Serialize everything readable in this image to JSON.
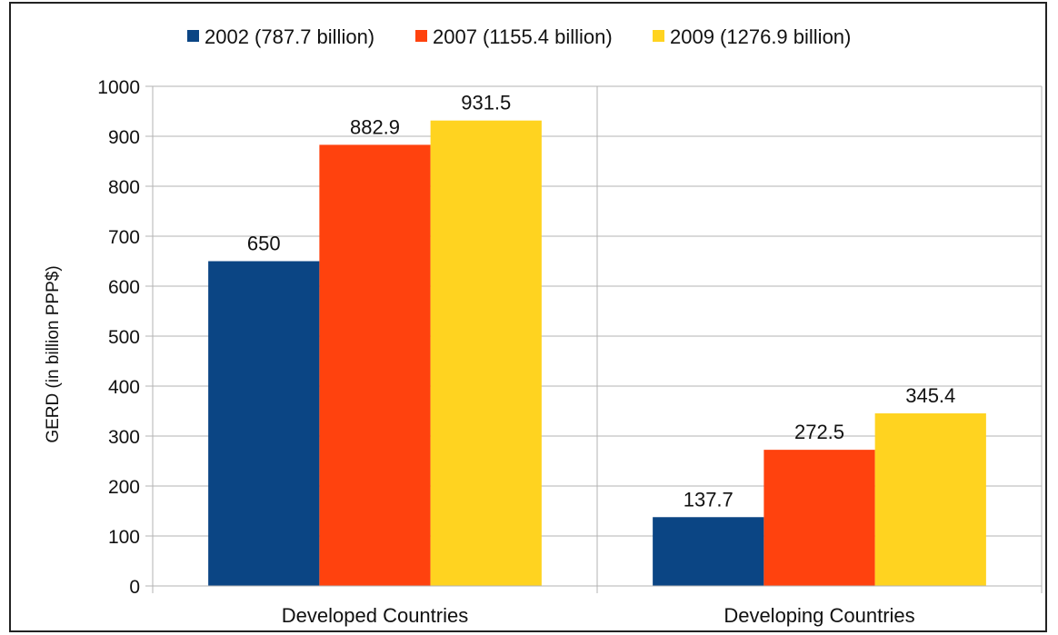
{
  "chart_data": {
    "type": "bar",
    "categories": [
      "Developed Countries",
      "Developing Countries"
    ],
    "series": [
      {
        "name": "2002 (787.7 billion)",
        "color": "#0b4584",
        "values": [
          650,
          137.7
        ],
        "labels": [
          "650",
          "137.7"
        ]
      },
      {
        "name": "2007 (1155.4 billion)",
        "color": "#ff420e",
        "values": [
          882.9,
          272.5
        ],
        "labels": [
          "882.9",
          "272.5"
        ]
      },
      {
        "name": "2009 (1276.9 billion)",
        "color": "#ffd320",
        "values": [
          931.5,
          345.4
        ],
        "labels": [
          "931.5",
          "345.4"
        ]
      }
    ],
    "ylabel": "GERD (in billion PPP$)",
    "ylim": [
      0,
      1000
    ],
    "yticks": [
      "0",
      "100",
      "200",
      "300",
      "400",
      "500",
      "600",
      "700",
      "800",
      "900",
      "1000"
    ],
    "grid": true,
    "legend_position": "top"
  }
}
